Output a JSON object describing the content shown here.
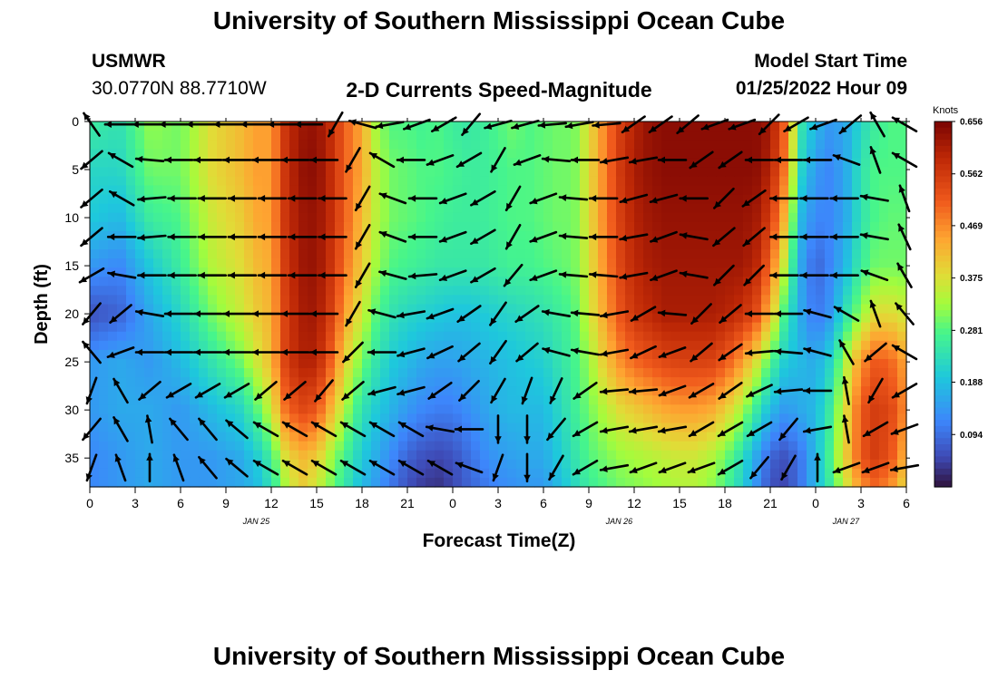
{
  "header": {
    "title": "University of Southern Mississippi Ocean Cube",
    "station_id": "USMWR",
    "station_coords": "30.0770N  88.7710W",
    "product": "2-D Currents Speed-Magnitude",
    "model_start_label": "Model Start Time",
    "model_start_value": "01/25/2022 Hour 09"
  },
  "footer": {
    "title": "University of Southern Mississippi Ocean Cube"
  },
  "chart_data": {
    "type": "heatmap",
    "title": "2-D Currents Speed-Magnitude",
    "xlabel": "Forecast Time(Z)",
    "ylabel": "Depth (ft)",
    "x_start_hour": 0,
    "x_end_hour": 54,
    "x_tick_labels": [
      "0",
      "3",
      "6",
      "9",
      "12",
      "15",
      "18",
      "21",
      "0",
      "3",
      "6",
      "9",
      "12",
      "15",
      "18",
      "21",
      "0",
      "3",
      "6"
    ],
    "date_labels": [
      {
        "text": "JAN 25",
        "hour": 11
      },
      {
        "text": "JAN 26",
        "hour": 35
      },
      {
        "text": "JAN 27",
        "hour": 50
      }
    ],
    "y_ticks": [
      0,
      5,
      10,
      15,
      20,
      25,
      30,
      35
    ],
    "ylim": [
      0,
      38
    ],
    "y_inverted": true,
    "colorbar": {
      "label": "Knots",
      "ticks": [
        "0.656",
        "0.562",
        "0.469",
        "0.375",
        "0.281",
        "0.188",
        "0.094"
      ],
      "range": [
        0,
        0.656
      ],
      "colormap": "turbo"
    },
    "speed_field_knots": {
      "hours": [
        0,
        2,
        4,
        6,
        8,
        10,
        11,
        12,
        13,
        14,
        15,
        16,
        17,
        18,
        19,
        20,
        21,
        22,
        23,
        24,
        25,
        26,
        27,
        28,
        29,
        30,
        31,
        32,
        33,
        34,
        35,
        36,
        37,
        38,
        39,
        40,
        41,
        42,
        43,
        44,
        45,
        46,
        47,
        48,
        49,
        50,
        51,
        52,
        53,
        54
      ],
      "depths": [
        0,
        5,
        10,
        15,
        20,
        25,
        30,
        35,
        38
      ],
      "values": [
        [
          0.26,
          0.24,
          0.32,
          0.3,
          0.38,
          0.42,
          0.45,
          0.45,
          0.58,
          0.62,
          0.63,
          0.58,
          0.5,
          0.44,
          0.32,
          0.28,
          0.28,
          0.27,
          0.28,
          0.26,
          0.25,
          0.26,
          0.28,
          0.3,
          0.28,
          0.29,
          0.3,
          0.3,
          0.38,
          0.47,
          0.55,
          0.6,
          0.63,
          0.64,
          0.64,
          0.64,
          0.64,
          0.64,
          0.64,
          0.64,
          0.62,
          0.5,
          0.25,
          0.18,
          0.14,
          0.16,
          0.22,
          0.26,
          0.28,
          0.28
        ],
        [
          0.22,
          0.22,
          0.3,
          0.3,
          0.38,
          0.42,
          0.45,
          0.45,
          0.58,
          0.63,
          0.64,
          0.58,
          0.5,
          0.44,
          0.34,
          0.3,
          0.29,
          0.28,
          0.28,
          0.27,
          0.26,
          0.26,
          0.27,
          0.28,
          0.28,
          0.29,
          0.3,
          0.3,
          0.38,
          0.47,
          0.56,
          0.61,
          0.63,
          0.64,
          0.64,
          0.64,
          0.64,
          0.64,
          0.64,
          0.64,
          0.6,
          0.48,
          0.22,
          0.14,
          0.12,
          0.16,
          0.24,
          0.28,
          0.28,
          0.28
        ],
        [
          0.2,
          0.18,
          0.26,
          0.28,
          0.36,
          0.4,
          0.44,
          0.45,
          0.58,
          0.62,
          0.63,
          0.58,
          0.5,
          0.42,
          0.34,
          0.3,
          0.29,
          0.28,
          0.27,
          0.26,
          0.26,
          0.26,
          0.27,
          0.28,
          0.28,
          0.29,
          0.3,
          0.3,
          0.38,
          0.47,
          0.55,
          0.6,
          0.62,
          0.63,
          0.63,
          0.63,
          0.63,
          0.63,
          0.63,
          0.62,
          0.56,
          0.42,
          0.18,
          0.12,
          0.12,
          0.16,
          0.24,
          0.28,
          0.29,
          0.29
        ],
        [
          0.14,
          0.12,
          0.2,
          0.26,
          0.34,
          0.38,
          0.42,
          0.44,
          0.57,
          0.62,
          0.63,
          0.57,
          0.48,
          0.4,
          0.32,
          0.28,
          0.27,
          0.26,
          0.25,
          0.25,
          0.25,
          0.25,
          0.26,
          0.27,
          0.27,
          0.28,
          0.29,
          0.3,
          0.37,
          0.46,
          0.54,
          0.59,
          0.61,
          0.62,
          0.62,
          0.62,
          0.62,
          0.62,
          0.62,
          0.6,
          0.5,
          0.34,
          0.16,
          0.08,
          0.12,
          0.18,
          0.26,
          0.3,
          0.3,
          0.3
        ],
        [
          0.06,
          0.08,
          0.16,
          0.22,
          0.3,
          0.36,
          0.4,
          0.43,
          0.56,
          0.61,
          0.62,
          0.55,
          0.44,
          0.36,
          0.28,
          0.24,
          0.22,
          0.21,
          0.2,
          0.19,
          0.19,
          0.2,
          0.21,
          0.22,
          0.23,
          0.24,
          0.26,
          0.28,
          0.36,
          0.44,
          0.52,
          0.57,
          0.59,
          0.61,
          0.61,
          0.61,
          0.61,
          0.6,
          0.58,
          0.54,
          0.42,
          0.26,
          0.16,
          0.1,
          0.14,
          0.24,
          0.32,
          0.38,
          0.38,
          0.36
        ],
        [
          0.14,
          0.16,
          0.14,
          0.18,
          0.24,
          0.3,
          0.36,
          0.42,
          0.56,
          0.6,
          0.6,
          0.5,
          0.38,
          0.3,
          0.24,
          0.2,
          0.18,
          0.16,
          0.15,
          0.15,
          0.16,
          0.17,
          0.18,
          0.19,
          0.2,
          0.21,
          0.24,
          0.27,
          0.32,
          0.4,
          0.46,
          0.5,
          0.52,
          0.54,
          0.55,
          0.55,
          0.55,
          0.52,
          0.46,
          0.38,
          0.28,
          0.2,
          0.18,
          0.16,
          0.22,
          0.34,
          0.46,
          0.52,
          0.5,
          0.44
        ],
        [
          0.14,
          0.16,
          0.16,
          0.14,
          0.18,
          0.22,
          0.28,
          0.36,
          0.5,
          0.54,
          0.52,
          0.42,
          0.32,
          0.24,
          0.2,
          0.17,
          0.14,
          0.12,
          0.11,
          0.11,
          0.13,
          0.15,
          0.17,
          0.18,
          0.18,
          0.18,
          0.22,
          0.26,
          0.3,
          0.34,
          0.38,
          0.4,
          0.42,
          0.44,
          0.45,
          0.45,
          0.44,
          0.4,
          0.34,
          0.26,
          0.18,
          0.14,
          0.16,
          0.18,
          0.26,
          0.38,
          0.52,
          0.56,
          0.54,
          0.46
        ],
        [
          0.12,
          0.14,
          0.16,
          0.14,
          0.14,
          0.16,
          0.2,
          0.26,
          0.38,
          0.42,
          0.4,
          0.32,
          0.26,
          0.2,
          0.16,
          0.12,
          0.08,
          0.06,
          0.05,
          0.06,
          0.09,
          0.12,
          0.14,
          0.15,
          0.16,
          0.16,
          0.2,
          0.24,
          0.28,
          0.3,
          0.32,
          0.33,
          0.34,
          0.35,
          0.36,
          0.36,
          0.34,
          0.3,
          0.24,
          0.16,
          0.08,
          0.06,
          0.1,
          0.18,
          0.28,
          0.4,
          0.52,
          0.56,
          0.52,
          0.42
        ],
        [
          0.12,
          0.14,
          0.16,
          0.14,
          0.14,
          0.16,
          0.18,
          0.24,
          0.34,
          0.4,
          0.36,
          0.3,
          0.24,
          0.18,
          0.14,
          0.1,
          0.06,
          0.04,
          0.03,
          0.05,
          0.08,
          0.1,
          0.12,
          0.13,
          0.14,
          0.14,
          0.18,
          0.22,
          0.26,
          0.28,
          0.3,
          0.31,
          0.32,
          0.33,
          0.34,
          0.34,
          0.32,
          0.28,
          0.22,
          0.14,
          0.06,
          0.05,
          0.1,
          0.18,
          0.26,
          0.36,
          0.46,
          0.5,
          0.46,
          0.38
        ]
      ]
    },
    "current_vectors": {
      "direction_deg_from_north": [
        [
          -35,
          -90,
          -90,
          -90,
          -90,
          -90,
          -90,
          -90,
          -90,
          -150,
          -75,
          -100,
          -110,
          -120,
          -140,
          -105,
          -105,
          -95,
          -100,
          -95,
          -125,
          -125,
          -130,
          -110,
          -110,
          -135,
          -120,
          -110,
          -130,
          -30,
          -60
        ],
        [
          -130,
          -60,
          -85,
          -90,
          -90,
          -90,
          -90,
          -90,
          -90,
          -150,
          -60,
          -90,
          -110,
          -120,
          -150,
          -110,
          -85,
          -90,
          -100,
          -100,
          -90,
          -125,
          -125,
          -90,
          -90,
          -90,
          -70,
          -20,
          -60
        ],
        [
          -130,
          -60,
          -95,
          -90,
          -90,
          -90,
          -90,
          -90,
          -90,
          -150,
          -70,
          -90,
          -110,
          -120,
          -150,
          -110,
          -85,
          -90,
          -105,
          -105,
          -90,
          -135,
          -125,
          -90,
          -90,
          -90,
          -80,
          -20
        ],
        [
          -130,
          -90,
          -95,
          -90,
          -90,
          -90,
          -90,
          -90,
          -90,
          -150,
          -70,
          -90,
          -110,
          -120,
          -150,
          -110,
          -85,
          -90,
          -100,
          -110,
          -80,
          -130,
          -130,
          -90,
          -90,
          -90,
          -80,
          -25
        ],
        [
          -120,
          -80,
          -90,
          -90,
          -90,
          -90,
          -90,
          -90,
          -90,
          -150,
          -75,
          -95,
          -110,
          -120,
          -140,
          -110,
          -85,
          -85,
          -100,
          -110,
          -80,
          -135,
          -135,
          -90,
          -90,
          -90,
          -70,
          -30
        ],
        [
          -140,
          -130,
          -80,
          -90,
          -90,
          -90,
          -90,
          -90,
          -90,
          -150,
          -75,
          -100,
          -110,
          -125,
          -145,
          -125,
          -80,
          -85,
          -100,
          -120,
          -85,
          -135,
          -130,
          -90,
          -90,
          -75,
          -60,
          -20,
          -40
        ],
        [
          -40,
          -110,
          -90,
          -90,
          -90,
          -90,
          -90,
          -90,
          -90,
          -135,
          -90,
          -105,
          -115,
          -130,
          -145,
          -130,
          -75,
          -80,
          -100,
          -115,
          -110,
          -130,
          -125,
          -95,
          -85,
          -75,
          -30,
          -130,
          -60
        ],
        [
          -160,
          -30,
          -130,
          -120,
          -120,
          -120,
          -130,
          -130,
          -140,
          -130,
          -105,
          -105,
          -125,
          -135,
          -150,
          -160,
          -155,
          -125,
          -95,
          -95,
          -110,
          -120,
          -125,
          -115,
          -95,
          -90,
          -10,
          -150,
          -120
        ],
        [
          -140,
          -30,
          -10,
          -40,
          -40,
          -50,
          -60,
          -60,
          -60,
          -60,
          -60,
          -60,
          -80,
          -90,
          -180,
          -180,
          -140,
          -120,
          -100,
          -100,
          -100,
          -120,
          -120,
          -120,
          -140,
          -100,
          -10,
          -120,
          -110
        ],
        [
          -160,
          -20,
          0,
          -20,
          -40,
          -50,
          -60,
          -60,
          -60,
          -60,
          -60,
          -60,
          -60,
          -70,
          -160,
          -180,
          -150,
          -120,
          -100,
          -110,
          -110,
          -110,
          -120,
          -140,
          -150,
          0,
          -110,
          -110,
          -100
        ]
      ]
    }
  }
}
